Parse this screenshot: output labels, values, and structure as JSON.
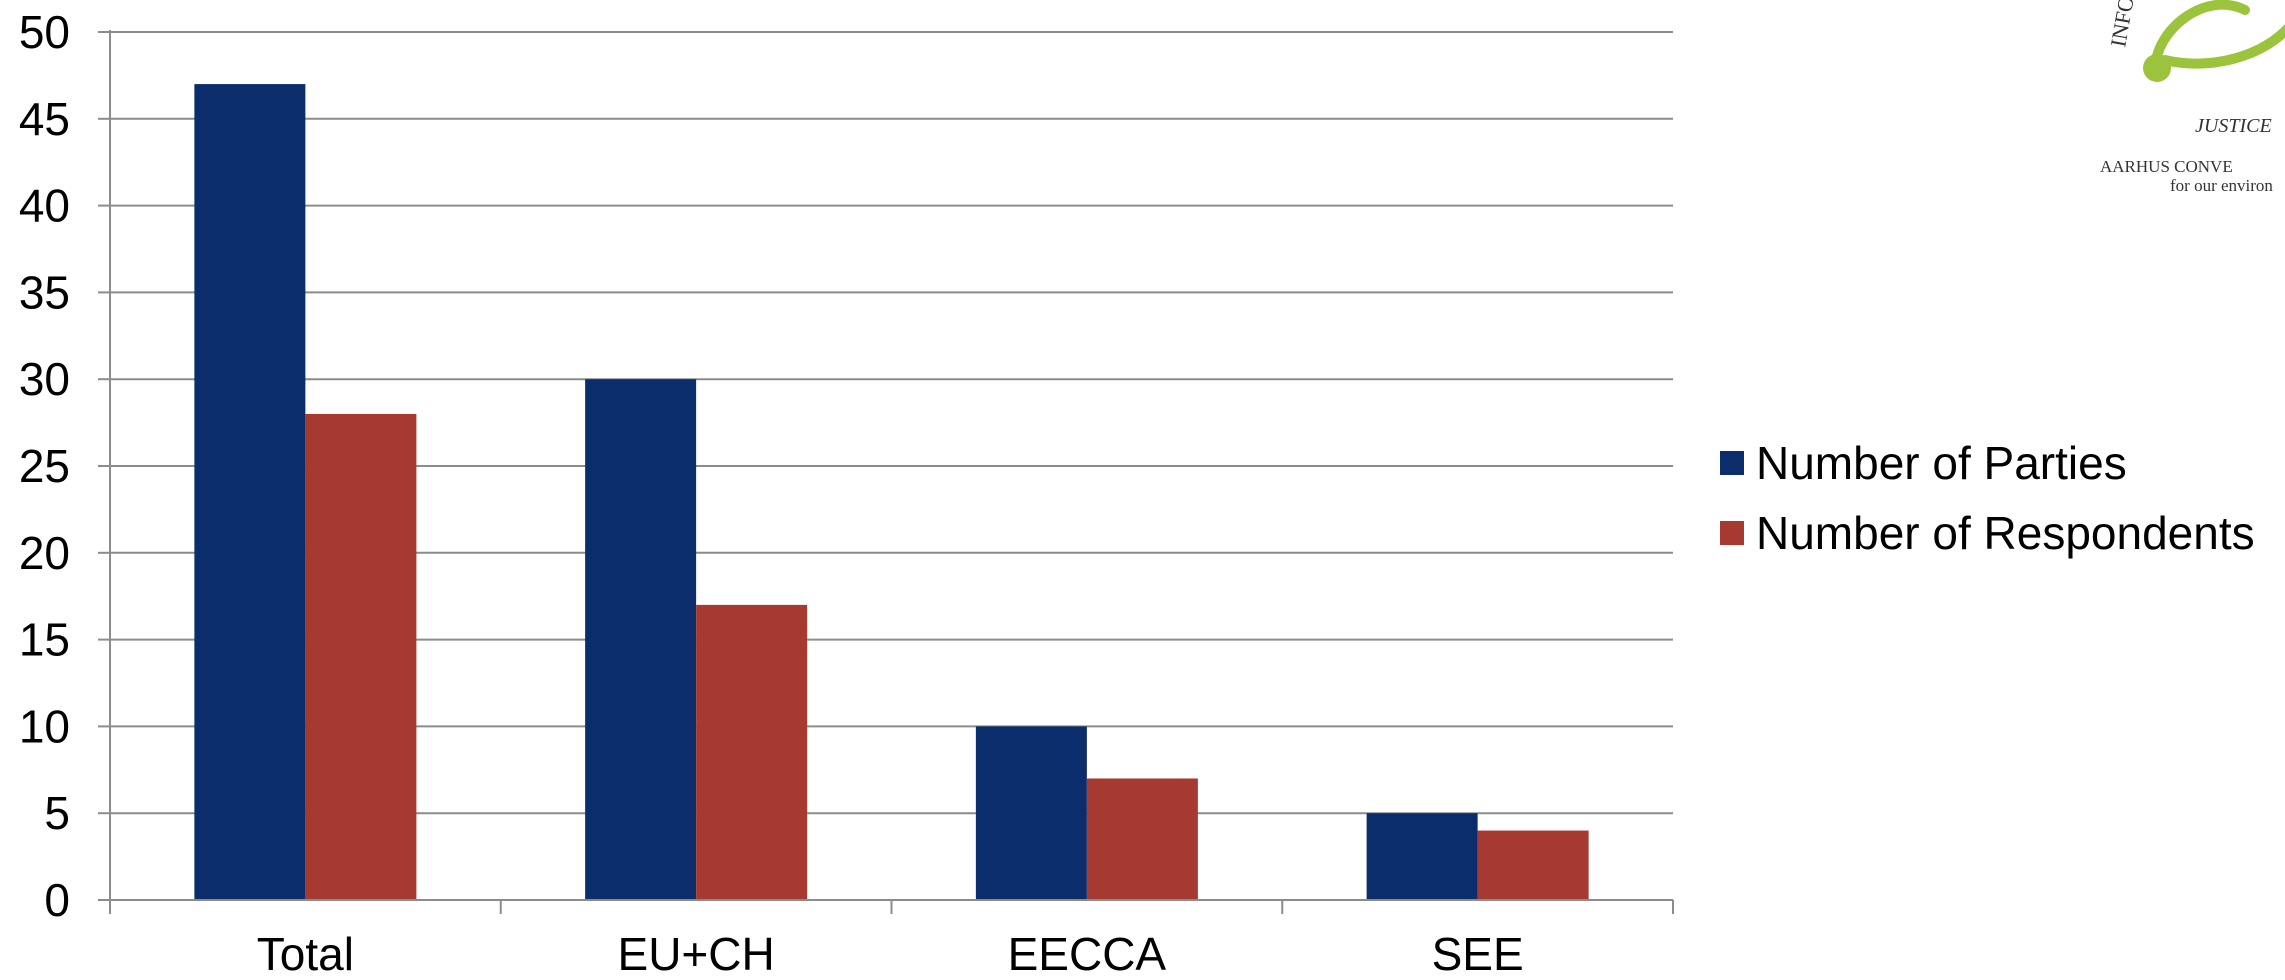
{
  "chart_data": {
    "type": "bar",
    "categories": [
      "Total",
      "EU+CH",
      "EECCA",
      "SEE"
    ],
    "series": [
      {
        "name": "Number of Parties",
        "values": [
          47,
          30,
          10,
          5
        ],
        "color": "#0c2d6b"
      },
      {
        "name": "Number of Respondents",
        "values": [
          28,
          17,
          7,
          4
        ],
        "color": "#a63a31"
      }
    ],
    "title": "",
    "xlabel": "",
    "ylabel": "",
    "ylim": [
      0,
      50
    ],
    "yticks": [
      0,
      5,
      10,
      15,
      20,
      25,
      30,
      35,
      40,
      45,
      50
    ],
    "grid": true,
    "legend_position": "right"
  },
  "logo": {
    "text_top": "INFO",
    "text_mid": "JUSTICE",
    "text_line1": "AARHUS CONVE",
    "text_line2": "for our environ",
    "color": "#9bc33c"
  }
}
